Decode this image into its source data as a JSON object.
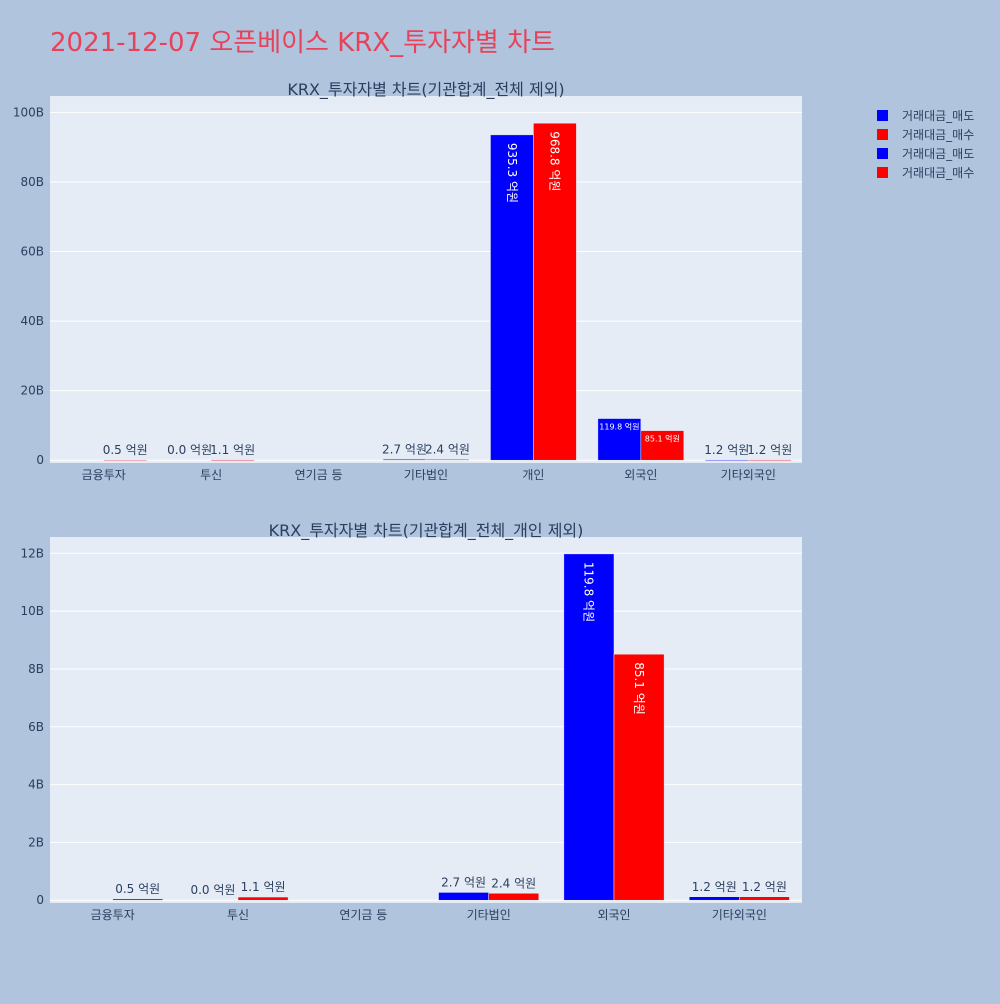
{
  "page": {
    "title": "2021-12-07 오픈베이스 KRX_투자자별 차트",
    "title_color": "#e8425a",
    "background": "#b0c4de"
  },
  "legend": {
    "placement": "top-right",
    "items": [
      {
        "label": "거래대금_매도",
        "color": "#0000ff"
      },
      {
        "label": "거래대금_매수",
        "color": "#ff0000"
      },
      {
        "label": "거래대금_매도",
        "color": "#0000ff"
      },
      {
        "label": "거래대금_매수",
        "color": "#ff0000"
      }
    ]
  },
  "chart_data": [
    {
      "type": "bar",
      "title": "KRX_투자자별 차트(기관합계_전체 제외)",
      "categories": [
        "금융투자",
        "투신",
        "연기금 등",
        "기타법인",
        "개인",
        "외국인",
        "기타외국인"
      ],
      "ylim": [
        0,
        100
      ],
      "yticks": [
        0,
        20,
        40,
        60,
        80,
        100
      ],
      "ytick_labels": [
        "0",
        "20B",
        "40B",
        "60B",
        "80B",
        "100B"
      ],
      "grid": true,
      "series": [
        {
          "name": "거래대금_매도",
          "color": "#0000ff",
          "values": [
            0.0,
            0.0,
            0.0,
            0.27,
            93.53,
            11.98,
            0.12
          ],
          "labels": [
            "",
            "0.0 억원",
            "",
            "2.7 억원",
            "935.3 억원",
            "119.8 억원",
            "1.2 억원"
          ]
        },
        {
          "name": "거래대금_매수",
          "color": "#ff0000",
          "values": [
            0.05,
            0.11,
            0.0,
            0.24,
            96.88,
            8.51,
            0.12
          ],
          "labels": [
            "0.5 억원",
            "1.1 억원",
            "",
            "2.4 억원",
            "968.8 억원",
            "85.1 억원",
            "1.2 억원"
          ]
        }
      ]
    },
    {
      "type": "bar",
      "title": "KRX_투자자별 차트(기관합계_전체_개인 제외)",
      "categories": [
        "금융투자",
        "투신",
        "연기금 등",
        "기타법인",
        "외국인",
        "기타외국인"
      ],
      "ylim": [
        0,
        12
      ],
      "yticks": [
        0,
        2,
        4,
        6,
        8,
        10,
        12
      ],
      "ytick_labels": [
        "0",
        "2B",
        "4B",
        "6B",
        "8B",
        "10B",
        "12B"
      ],
      "grid": true,
      "series": [
        {
          "name": "거래대금_매도",
          "color": "#0000ff",
          "values": [
            0.0,
            0.0,
            0.0,
            0.27,
            11.98,
            0.12
          ],
          "labels": [
            "",
            "0.0 억원",
            "",
            "2.7 억원",
            "119.8 억원",
            "1.2 억원"
          ]
        },
        {
          "name": "거래대금_매수",
          "color": "#ff0000",
          "values": [
            0.05,
            0.11,
            0.0,
            0.24,
            8.51,
            0.12
          ],
          "labels": [
            "0.5 억원",
            "1.1 억원",
            "",
            "2.4 억원",
            "85.1 억원",
            "1.2 억원"
          ]
        }
      ]
    }
  ]
}
